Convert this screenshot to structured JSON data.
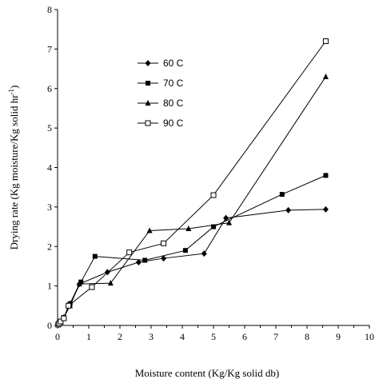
{
  "chart_data": {
    "type": "line",
    "xlabel": "Moisture content (Kg/Kg solid db)",
    "ylabel_main": "Drying rate (Kg moisture/Kg solid hr",
    "ylabel_sup": "-1",
    "ylabel_end": ")",
    "xlim": [
      0,
      10
    ],
    "ylim": [
      0,
      8
    ],
    "xticks": [
      "0",
      "1",
      "2",
      "3",
      "4",
      "5",
      "6",
      "7",
      "8",
      "9",
      "10"
    ],
    "yticks": [
      "0",
      "1",
      "2",
      "3",
      "4",
      "5",
      "6",
      "7",
      "8"
    ],
    "grid": false,
    "legend_position": "upper-left",
    "series": [
      {
        "name": "60 C",
        "marker": "diamond",
        "points": [
          [
            0.02,
            0.02
          ],
          [
            0.05,
            0.03
          ],
          [
            0.1,
            0.07
          ],
          [
            0.2,
            0.2
          ],
          [
            0.4,
            0.55
          ],
          [
            0.7,
            1.05
          ],
          [
            1.6,
            1.35
          ],
          [
            2.6,
            1.6
          ],
          [
            3.4,
            1.7
          ],
          [
            4.7,
            1.82
          ],
          [
            5.4,
            2.72
          ],
          [
            7.4,
            2.92
          ],
          [
            8.6,
            2.94
          ]
        ]
      },
      {
        "name": "70 C",
        "marker": "square",
        "points": [
          [
            0.02,
            0.02
          ],
          [
            0.05,
            0.05
          ],
          [
            0.1,
            0.1
          ],
          [
            0.2,
            0.2
          ],
          [
            0.4,
            0.55
          ],
          [
            0.75,
            1.1
          ],
          [
            1.2,
            1.75
          ],
          [
            2.8,
            1.65
          ],
          [
            4.1,
            1.9
          ],
          [
            5.0,
            2.5
          ],
          [
            7.2,
            3.32
          ],
          [
            8.6,
            3.8
          ]
        ]
      },
      {
        "name": "80 C",
        "marker": "triangle",
        "points": [
          [
            0.02,
            0.02
          ],
          [
            0.05,
            0.04
          ],
          [
            0.1,
            0.08
          ],
          [
            0.2,
            0.2
          ],
          [
            0.4,
            0.5
          ],
          [
            0.7,
            1.05
          ],
          [
            1.7,
            1.07
          ],
          [
            2.95,
            2.4
          ],
          [
            4.2,
            2.45
          ],
          [
            5.5,
            2.6
          ],
          [
            8.6,
            6.3
          ]
        ]
      },
      {
        "name": "90 C",
        "marker": "open-square",
        "points": [
          [
            0.02,
            0.02
          ],
          [
            0.05,
            0.05
          ],
          [
            0.1,
            0.1
          ],
          [
            0.2,
            0.18
          ],
          [
            0.35,
            0.5
          ],
          [
            1.1,
            0.97
          ],
          [
            2.3,
            1.85
          ],
          [
            3.4,
            2.08
          ],
          [
            5.0,
            3.3
          ],
          [
            8.6,
            7.2
          ]
        ]
      }
    ]
  }
}
